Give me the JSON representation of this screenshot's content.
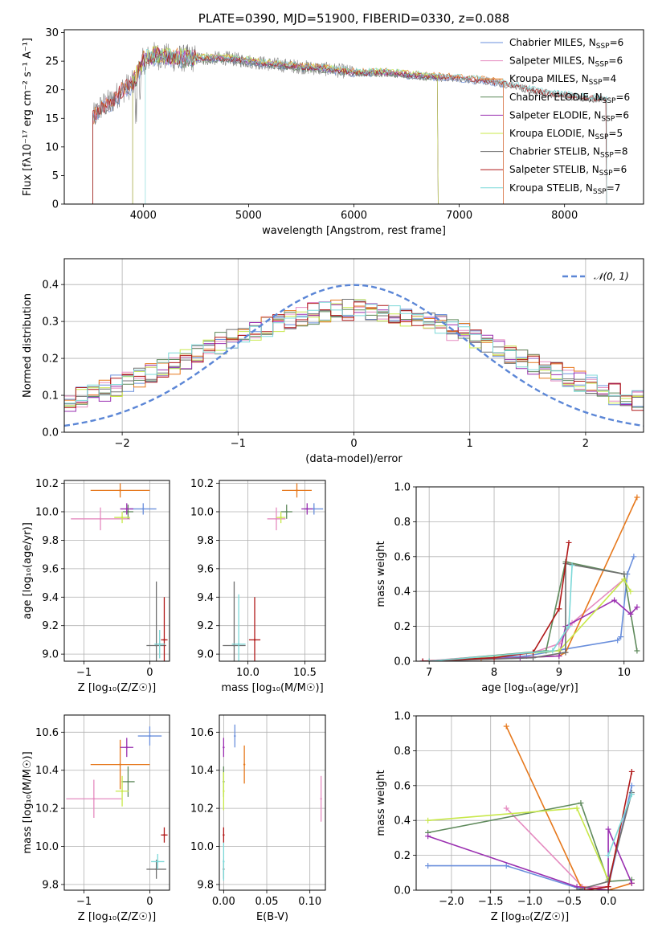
{
  "series_colors": {
    "Chabrier MILES": "#6a8fdc",
    "Salpeter MILES": "#e58bc0",
    "Kroupa MILES": "#e6781c",
    "Chabrier ELODIE": "#5f8a5c",
    "Salpeter ELODIE": "#9a2fb0",
    "Kroupa ELODIE": "#c8e84a",
    "Chabrier STELIB": "#707070",
    "Salpeter STELIB": "#b01818",
    "Kroupa STELIB": "#7cd8d8"
  },
  "chart_data": [
    {
      "id": "spectrum",
      "type": "line",
      "title": "PLATE=0390, MJD=51900, FIBERID=0330, z=0.088",
      "xlabel": "wavelength [Angstrom, rest frame]",
      "ylabel": "Flux [fλ10⁻¹⁷ erg cm⁻² s⁻¹ A⁻¹]",
      "xlim": [
        3250,
        8750
      ],
      "ylim": [
        0,
        30.5
      ],
      "xticks": [
        4000,
        5000,
        6000,
        7000,
        8000
      ],
      "yticks": [
        0,
        5,
        10,
        15,
        20,
        25,
        30
      ],
      "continuum_points": [
        [
          3520,
          15
        ],
        [
          3600,
          17
        ],
        [
          3700,
          18
        ],
        [
          3800,
          20
        ],
        [
          3900,
          21
        ],
        [
          4000,
          25
        ],
        [
          4100,
          26
        ],
        [
          4300,
          25.5
        ],
        [
          4500,
          25.5
        ],
        [
          4800,
          25.5
        ],
        [
          5000,
          25
        ],
        [
          5200,
          24.5
        ],
        [
          5500,
          24
        ],
        [
          5800,
          23.5
        ],
        [
          6000,
          23
        ],
        [
          6300,
          23
        ],
        [
          6600,
          22.5
        ],
        [
          7000,
          22
        ],
        [
          7300,
          21.5
        ],
        [
          7500,
          20.8
        ],
        [
          7800,
          19.5
        ],
        [
          8200,
          18.6
        ],
        [
          8400,
          18.3
        ]
      ],
      "grid": false,
      "legend_position": "top-right",
      "legend": [
        {
          "name": "Chabrier MILES",
          "n": "6",
          "range": [
            3520,
            7420
          ]
        },
        {
          "name": "Salpeter MILES",
          "n": "6",
          "range": [
            3520,
            7420
          ]
        },
        {
          "name": "Kroupa MILES",
          "n": "4",
          "range": [
            3520,
            7420
          ]
        },
        {
          "name": "Chabrier ELODIE",
          "n": "6",
          "range": [
            3900,
            6800
          ]
        },
        {
          "name": "Salpeter ELODIE",
          "n": "6",
          "range": [
            3900,
            6800
          ]
        },
        {
          "name": "Kroupa ELODIE",
          "n": "5",
          "range": [
            3900,
            6800
          ]
        },
        {
          "name": "Chabrier STELIB",
          "n": "8",
          "range": [
            3520,
            8400
          ]
        },
        {
          "name": "Salpeter STELIB",
          "n": "6",
          "range": [
            3520,
            8400
          ]
        },
        {
          "name": "Kroupa STELIB",
          "n": "7",
          "range": [
            4020,
            8400
          ]
        }
      ]
    },
    {
      "id": "residuals",
      "type": "line",
      "xlabel": "(data-model)/error",
      "ylabel": "Normed distribution",
      "xlim": [
        -2.5,
        2.5
      ],
      "ylim": [
        0,
        0.47
      ],
      "xticks": [
        -2,
        -1,
        0,
        1,
        2
      ],
      "yticks": [
        0.0,
        0.1,
        0.2,
        0.3,
        0.4
      ],
      "grid": true,
      "legend_position": "top-right",
      "legend_label": "𝒩(0, 1)",
      "gaussian": {
        "mean": 0,
        "sigma": 1
      },
      "histogram_bins": {
        "start": -2.5,
        "width": 0.1,
        "count": 50
      }
    },
    {
      "id": "age-vs-Z",
      "type": "scatter",
      "xlabel": "Z [log₁₀(Z/Z☉)]",
      "ylabel": "age  [log₁₀(age/yr)]",
      "xlim": [
        -1.3,
        0.3
      ],
      "ylim": [
        8.95,
        10.22
      ],
      "xticks": [
        -1,
        0
      ],
      "yticks": [
        9.0,
        9.2,
        9.4,
        9.6,
        9.8,
        10.0,
        10.2
      ],
      "grid": true,
      "points": [
        {
          "series": "Chabrier MILES",
          "x": -0.1,
          "y": 10.02,
          "xerr": 0.2,
          "yerr": 0.04
        },
        {
          "series": "Salpeter MILES",
          "x": -0.75,
          "y": 9.95,
          "xerr": 0.45,
          "yerr": 0.08
        },
        {
          "series": "Kroupa MILES",
          "x": -0.45,
          "y": 10.15,
          "xerr": 0.45,
          "yerr": 0.05
        },
        {
          "series": "Chabrier ELODIE",
          "x": -0.33,
          "y": 10.0,
          "xerr": 0.08,
          "yerr": 0.05
        },
        {
          "series": "Salpeter ELODIE",
          "x": -0.35,
          "y": 10.02,
          "xerr": 0.1,
          "yerr": 0.04
        },
        {
          "series": "Kroupa ELODIE",
          "x": -0.42,
          "y": 9.96,
          "xerr": 0.12,
          "yerr": 0.04
        },
        {
          "series": "Chabrier STELIB",
          "x": 0.1,
          "y": 9.06,
          "xerr": 0.15,
          "yerr": 0.45
        },
        {
          "series": "Salpeter STELIB",
          "x": 0.22,
          "y": 9.1,
          "xerr": 0.05,
          "yerr": 0.3
        },
        {
          "series": "Kroupa STELIB",
          "x": 0.15,
          "y": 9.07,
          "xerr": 0.08,
          "yerr": 0.1
        }
      ]
    },
    {
      "id": "age-vs-mass",
      "type": "scatter",
      "xlabel": "mass [log₁₀(M/M☉)]",
      "ylabel": "",
      "xlim": [
        9.75,
        10.68
      ],
      "ylim": [
        8.95,
        10.22
      ],
      "xticks": [
        10.0,
        10.5
      ],
      "yticks": [
        9.0,
        9.2,
        9.4,
        9.6,
        9.8,
        10.0,
        10.2
      ],
      "grid": true,
      "points": [
        {
          "series": "Chabrier MILES",
          "x": 10.58,
          "y": 10.02,
          "xerr": 0.08,
          "yerr": 0.04
        },
        {
          "series": "Salpeter MILES",
          "x": 10.25,
          "y": 9.95,
          "xerr": 0.08,
          "yerr": 0.08
        },
        {
          "series": "Kroupa MILES",
          "x": 10.43,
          "y": 10.15,
          "xerr": 0.13,
          "yerr": 0.05
        },
        {
          "series": "Chabrier ELODIE",
          "x": 10.34,
          "y": 10.0,
          "xerr": 0.05,
          "yerr": 0.05
        },
        {
          "series": "Salpeter ELODIE",
          "x": 10.52,
          "y": 10.02,
          "xerr": 0.05,
          "yerr": 0.04
        },
        {
          "series": "Kroupa ELODIE",
          "x": 10.29,
          "y": 9.96,
          "xerr": 0.04,
          "yerr": 0.04
        },
        {
          "series": "Chabrier STELIB",
          "x": 9.88,
          "y": 9.06,
          "xerr": 0.1,
          "yerr": 0.45
        },
        {
          "series": "Salpeter STELIB",
          "x": 10.06,
          "y": 9.1,
          "xerr": 0.05,
          "yerr": 0.3
        },
        {
          "series": "Kroupa STELIB",
          "x": 9.92,
          "y": 9.07,
          "xerr": 0.06,
          "yerr": 0.35
        }
      ]
    },
    {
      "id": "mass-weight-vs-age",
      "type": "line",
      "xlabel": "age  [log₁₀(age/yr)]",
      "ylabel": "mass weight",
      "xlim": [
        6.8,
        10.3
      ],
      "ylim": [
        0,
        1.0
      ],
      "xticks": [
        7,
        8,
        9,
        10
      ],
      "yticks": [
        0.0,
        0.2,
        0.4,
        0.6,
        0.8,
        1.0
      ],
      "grid": true,
      "series": [
        {
          "name": "Chabrier MILES",
          "points": [
            [
              6.9,
              0.0
            ],
            [
              8.5,
              0.03
            ],
            [
              9.1,
              0.07
            ],
            [
              9.9,
              0.12
            ],
            [
              9.95,
              0.14
            ],
            [
              10.05,
              0.5
            ],
            [
              10.15,
              0.6
            ]
          ]
        },
        {
          "name": "Salpeter MILES",
          "points": [
            [
              6.9,
              0.0
            ],
            [
              8.6,
              0.05
            ],
            [
              9.0,
              0.1
            ],
            [
              9.2,
              0.22
            ],
            [
              10.0,
              0.47
            ]
          ]
        },
        {
          "name": "Kroupa MILES",
          "points": [
            [
              7.8,
              0.01
            ],
            [
              9.0,
              0.03
            ],
            [
              9.1,
              0.05
            ],
            [
              10.2,
              0.94
            ]
          ]
        },
        {
          "name": "Chabrier ELODIE",
          "points": [
            [
              7.0,
              0.0
            ],
            [
              8.8,
              0.06
            ],
            [
              9.1,
              0.57
            ],
            [
              10.0,
              0.5
            ],
            [
              10.2,
              0.06
            ]
          ]
        },
        {
          "name": "Salpeter ELODIE",
          "points": [
            [
              6.9,
              0.0
            ],
            [
              8.4,
              0.02
            ],
            [
              9.0,
              0.03
            ],
            [
              9.1,
              0.2
            ],
            [
              9.85,
              0.35
            ],
            [
              10.1,
              0.27
            ],
            [
              10.2,
              0.31
            ]
          ]
        },
        {
          "name": "Kroupa ELODIE",
          "points": [
            [
              7.0,
              0.0
            ],
            [
              9.0,
              0.06
            ],
            [
              10.0,
              0.47
            ],
            [
              10.1,
              0.4
            ]
          ]
        },
        {
          "name": "Chabrier STELIB",
          "points": [
            [
              7.0,
              0.0
            ],
            [
              8.6,
              0.02
            ],
            [
              9.1,
              0.05
            ],
            [
              9.1,
              0.56
            ],
            [
              10.0,
              0.5
            ]
          ]
        },
        {
          "name": "Salpeter STELIB",
          "points": [
            [
              6.9,
              0.0
            ],
            [
              8.0,
              0.02
            ],
            [
              8.6,
              0.05
            ],
            [
              9.0,
              0.3
            ],
            [
              9.15,
              0.68
            ]
          ]
        },
        {
          "name": "Kroupa STELIB",
          "points": [
            [
              7.0,
              0.0
            ],
            [
              8.9,
              0.06
            ],
            [
              9.15,
              0.2
            ],
            [
              9.2,
              0.55
            ]
          ]
        }
      ]
    },
    {
      "id": "mass-vs-Z",
      "type": "scatter",
      "xlabel": "Z [log₁₀(Z/Z☉)]",
      "ylabel": "mass [log₁₀(M/M☉)]",
      "xlim": [
        -1.3,
        0.3
      ],
      "ylim": [
        9.77,
        10.69
      ],
      "xticks": [
        -1,
        0
      ],
      "yticks": [
        9.8,
        10.0,
        10.2,
        10.4,
        10.6
      ],
      "grid": true,
      "points": [
        {
          "series": "Chabrier MILES",
          "x": 0.0,
          "y": 10.58,
          "xerr": 0.18,
          "yerr": 0.05
        },
        {
          "series": "Salpeter MILES",
          "x": -0.85,
          "y": 10.25,
          "xerr": 0.42,
          "yerr": 0.1
        },
        {
          "series": "Kroupa MILES",
          "x": -0.45,
          "y": 10.43,
          "xerr": 0.45,
          "yerr": 0.13
        },
        {
          "series": "Chabrier ELODIE",
          "x": -0.33,
          "y": 10.34,
          "xerr": 0.1,
          "yerr": 0.08
        },
        {
          "series": "Salpeter ELODIE",
          "x": -0.35,
          "y": 10.52,
          "xerr": 0.1,
          "yerr": 0.05
        },
        {
          "series": "Kroupa ELODIE",
          "x": -0.42,
          "y": 10.29,
          "xerr": 0.1,
          "yerr": 0.08
        },
        {
          "series": "Chabrier STELIB",
          "x": 0.1,
          "y": 9.88,
          "xerr": 0.15,
          "yerr": 0.05
        },
        {
          "series": "Salpeter STELIB",
          "x": 0.22,
          "y": 10.06,
          "xerr": 0.05,
          "yerr": 0.04
        },
        {
          "series": "Kroupa STELIB",
          "x": 0.12,
          "y": 9.92,
          "xerr": 0.1,
          "yerr": 0.04
        }
      ]
    },
    {
      "id": "mass-vs-ebv",
      "type": "scatter",
      "xlabel": "E(B-V)",
      "ylabel": "",
      "xlim": [
        -0.005,
        0.118
      ],
      "ylim": [
        9.77,
        10.69
      ],
      "xticks": [
        0.0,
        0.05,
        0.1
      ],
      "yticks": [
        9.8,
        10.0,
        10.2,
        10.4,
        10.6
      ],
      "grid": true,
      "points": [
        {
          "series": "Chabrier MILES",
          "x": 0.013,
          "y": 10.58,
          "xerr": 0.0,
          "yerr": 0.06
        },
        {
          "series": "Salpeter MILES",
          "x": 0.113,
          "y": 10.25,
          "xerr": 0.0,
          "yerr": 0.12
        },
        {
          "series": "Kroupa MILES",
          "x": 0.024,
          "y": 10.43,
          "xerr": 0.0,
          "yerr": 0.1
        },
        {
          "series": "Chabrier ELODIE",
          "x": 0.0,
          "y": 10.34,
          "xerr": 0.0,
          "yerr": 0.08
        },
        {
          "series": "Salpeter ELODIE",
          "x": 0.0,
          "y": 10.52,
          "xerr": 0.0,
          "yerr": 0.05
        },
        {
          "series": "Kroupa ELODIE",
          "x": 0.0,
          "y": 10.29,
          "xerr": 0.0,
          "yerr": 0.1
        },
        {
          "series": "Chabrier STELIB",
          "x": 0.0,
          "y": 9.88,
          "xerr": 0.0,
          "yerr": 0.05
        },
        {
          "series": "Salpeter STELIB",
          "x": 0.0,
          "y": 10.06,
          "xerr": 0.0,
          "yerr": 0.04
        },
        {
          "series": "Kroupa STELIB",
          "x": 0.0,
          "y": 9.92,
          "xerr": 0.0,
          "yerr": 0.1
        }
      ]
    },
    {
      "id": "mass-weight-vs-Z",
      "type": "line",
      "xlabel": "Z [log₁₀(Z/Z☉)]",
      "ylabel": "mass weight",
      "xlim": [
        -2.45,
        0.45
      ],
      "ylim": [
        0,
        1.0
      ],
      "xticks": [
        -2.0,
        -1.5,
        -1.0,
        -0.5,
        0.0
      ],
      "yticks": [
        0.0,
        0.2,
        0.4,
        0.6,
        0.8,
        1.0
      ],
      "grid": true,
      "series": [
        {
          "name": "Chabrier MILES",
          "points": [
            [
              -2.3,
              0.14
            ],
            [
              -1.3,
              0.14
            ],
            [
              -0.3,
              0.0
            ],
            [
              0.0,
              0.02
            ],
            [
              0.3,
              0.6
            ]
          ]
        },
        {
          "name": "Salpeter MILES",
          "points": [
            [
              -1.3,
              0.47
            ],
            [
              -0.33,
              0.02
            ],
            [
              0.0,
              0.02
            ]
          ]
        },
        {
          "name": "Kroupa MILES",
          "points": [
            [
              -1.3,
              0.94
            ],
            [
              -0.35,
              0.02
            ],
            [
              0.0,
              0.0
            ],
            [
              0.3,
              0.04
            ]
          ]
        },
        {
          "name": "Chabrier ELODIE",
          "points": [
            [
              -2.3,
              0.33
            ],
            [
              -0.35,
              0.5
            ],
            [
              0.0,
              0.05
            ],
            [
              0.3,
              0.06
            ]
          ]
        },
        {
          "name": "Salpeter ELODIE",
          "points": [
            [
              -2.3,
              0.31
            ],
            [
              -0.4,
              0.02
            ],
            [
              0.0,
              0.0
            ],
            [
              0.0,
              0.35
            ],
            [
              0.3,
              0.04
            ]
          ]
        },
        {
          "name": "Kroupa ELODIE",
          "points": [
            [
              -2.3,
              0.4
            ],
            [
              -0.4,
              0.47
            ],
            [
              0.0,
              0.06
            ]
          ]
        },
        {
          "name": "Chabrier STELIB",
          "points": [
            [
              -0.4,
              0.0
            ],
            [
              0.0,
              0.05
            ],
            [
              0.3,
              0.56
            ]
          ]
        },
        {
          "name": "Salpeter STELIB",
          "points": [
            [
              -0.3,
              0.0
            ],
            [
              0.0,
              0.02
            ],
            [
              0.3,
              0.68
            ]
          ]
        },
        {
          "name": "Kroupa STELIB",
          "points": [
            [
              0.0,
              0.2
            ],
            [
              0.3,
              0.55
            ]
          ]
        }
      ]
    }
  ]
}
